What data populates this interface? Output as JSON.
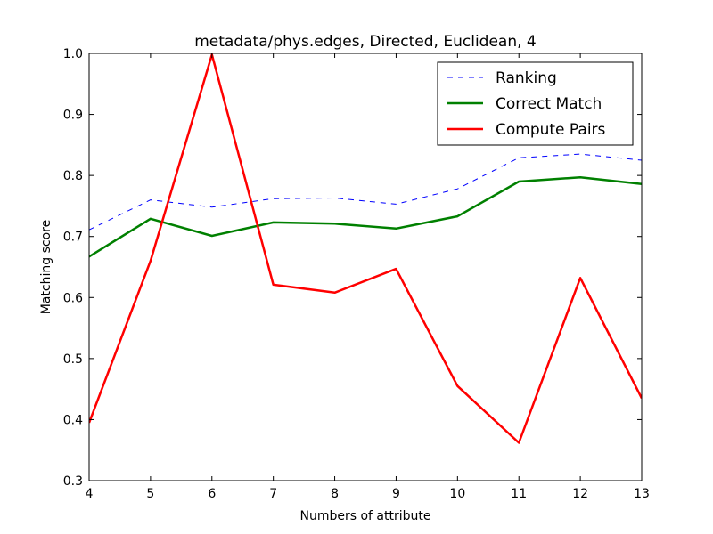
{
  "chart_data": {
    "type": "line",
    "title": "metadata/phys.edges, Directed, Euclidean, 4",
    "xlabel": "Numbers of attribute",
    "ylabel": "Matching score",
    "x": [
      4,
      5,
      6,
      7,
      8,
      9,
      10,
      11,
      12,
      13
    ],
    "xlim": [
      4,
      13
    ],
    "ylim": [
      0.3,
      1.0
    ],
    "xticks": [
      "4",
      "5",
      "6",
      "7",
      "8",
      "9",
      "10",
      "11",
      "12",
      "13"
    ],
    "yticks": [
      "0.3",
      "0.4",
      "0.5",
      "0.6",
      "0.7",
      "0.8",
      "0.9",
      "1.0"
    ],
    "grid": false,
    "legend_position": "top-right",
    "series": [
      {
        "name": "Ranking",
        "color": "#0000ff",
        "style": "dashed",
        "values": [
          0.711,
          0.76,
          0.748,
          0.762,
          0.763,
          0.753,
          0.778,
          0.829,
          0.835,
          0.825
        ]
      },
      {
        "name": "Correct Match",
        "color": "#008000",
        "style": "solid",
        "values": [
          0.667,
          0.729,
          0.701,
          0.723,
          0.721,
          0.713,
          0.733,
          0.79,
          0.797,
          0.786
        ]
      },
      {
        "name": "Compute Pairs",
        "color": "#ff0000",
        "style": "solid",
        "values": [
          0.395,
          0.66,
          0.998,
          0.621,
          0.608,
          0.647,
          0.455,
          0.362,
          0.632,
          0.435
        ]
      }
    ]
  }
}
